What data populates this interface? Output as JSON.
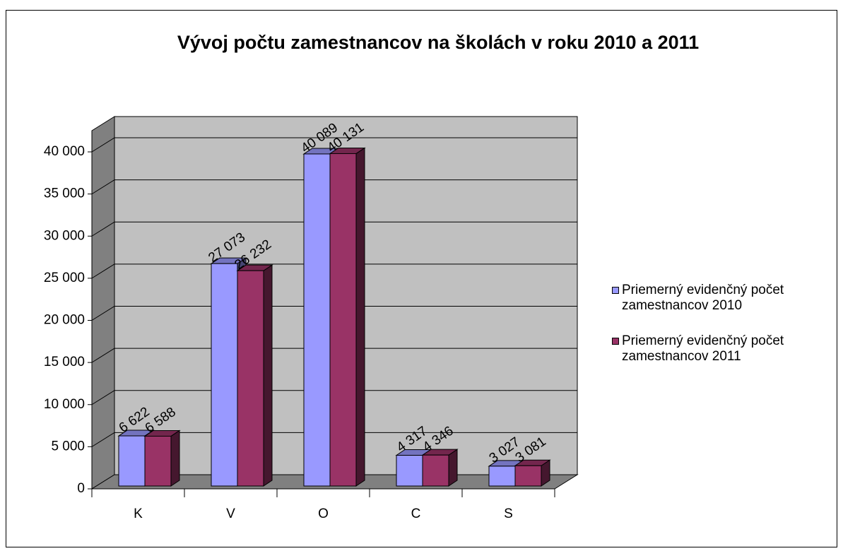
{
  "chart_data": {
    "type": "bar3d",
    "title": "Vývoj počtu zamestnancov na školách v roku 2010 a 2011",
    "categories": [
      "K",
      "V",
      "O",
      "C",
      "S"
    ],
    "series": [
      {
        "name": "Priemerný evidenčný počet zamestnancov 2010",
        "color": "#9999ff",
        "values": [
          6622,
          27073,
          40089,
          4317,
          3027
        ],
        "value_labels": [
          "6 622",
          "27 073",
          "40 089",
          "4 317",
          "3 027"
        ]
      },
      {
        "name": "Priemerný evidenčný počet zamestnancov 2011",
        "color": "#993366",
        "values": [
          6588,
          26232,
          40131,
          4346,
          3081
        ],
        "value_labels": [
          "6 588",
          "26 232",
          "40 131",
          "4 346",
          "3 081"
        ]
      }
    ],
    "ylim": [
      0,
      40000
    ],
    "yticks": [
      0,
      {
        "value": 5000,
        "label": "5 000"
      },
      {
        "value": 10000,
        "label": "10 000"
      },
      {
        "value": 15000,
        "label": "15 000"
      },
      {
        "value": 20000,
        "label": "20 000"
      },
      {
        "value": 25000,
        "label": "25 000"
      },
      {
        "value": 30000,
        "label": "30 000"
      },
      {
        "value": 35000,
        "label": "35 000"
      },
      {
        "value": 40000,
        "label": "40 000"
      }
    ],
    "grid": true,
    "legend": "right"
  }
}
